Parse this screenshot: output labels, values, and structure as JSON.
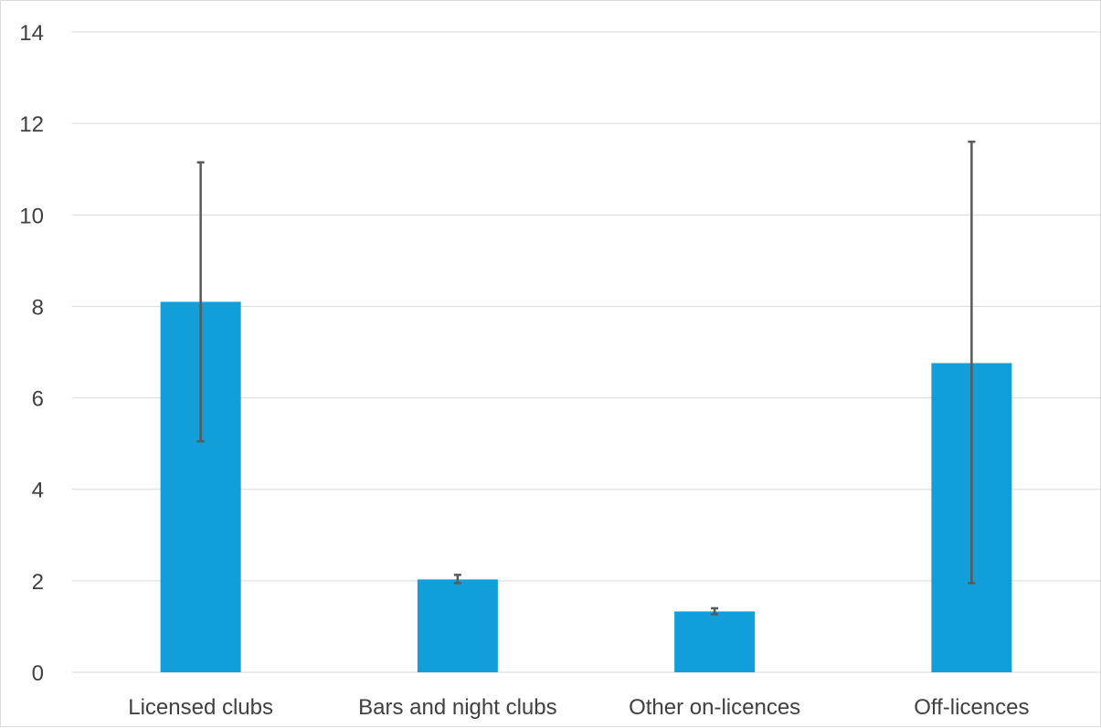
{
  "chart_data": {
    "type": "bar",
    "categories": [
      "Licensed clubs",
      "Bars and night clubs",
      "Other on-licences",
      "Off-licences"
    ],
    "values": [
      8.1,
      2.03,
      1.33,
      6.76
    ],
    "error_bars": {
      "lower": [
        5.05,
        1.95,
        1.27,
        1.95
      ],
      "upper": [
        11.15,
        2.13,
        1.4,
        11.6
      ]
    },
    "yticks": [
      "0",
      "2",
      "4",
      "6",
      "8",
      "10",
      "12",
      "14"
    ],
    "ylim": [
      0,
      14
    ],
    "grid": true,
    "bar_color": "#129fd9",
    "error_bar_color": "#595959",
    "gridline_color": "#d9d9d9"
  }
}
